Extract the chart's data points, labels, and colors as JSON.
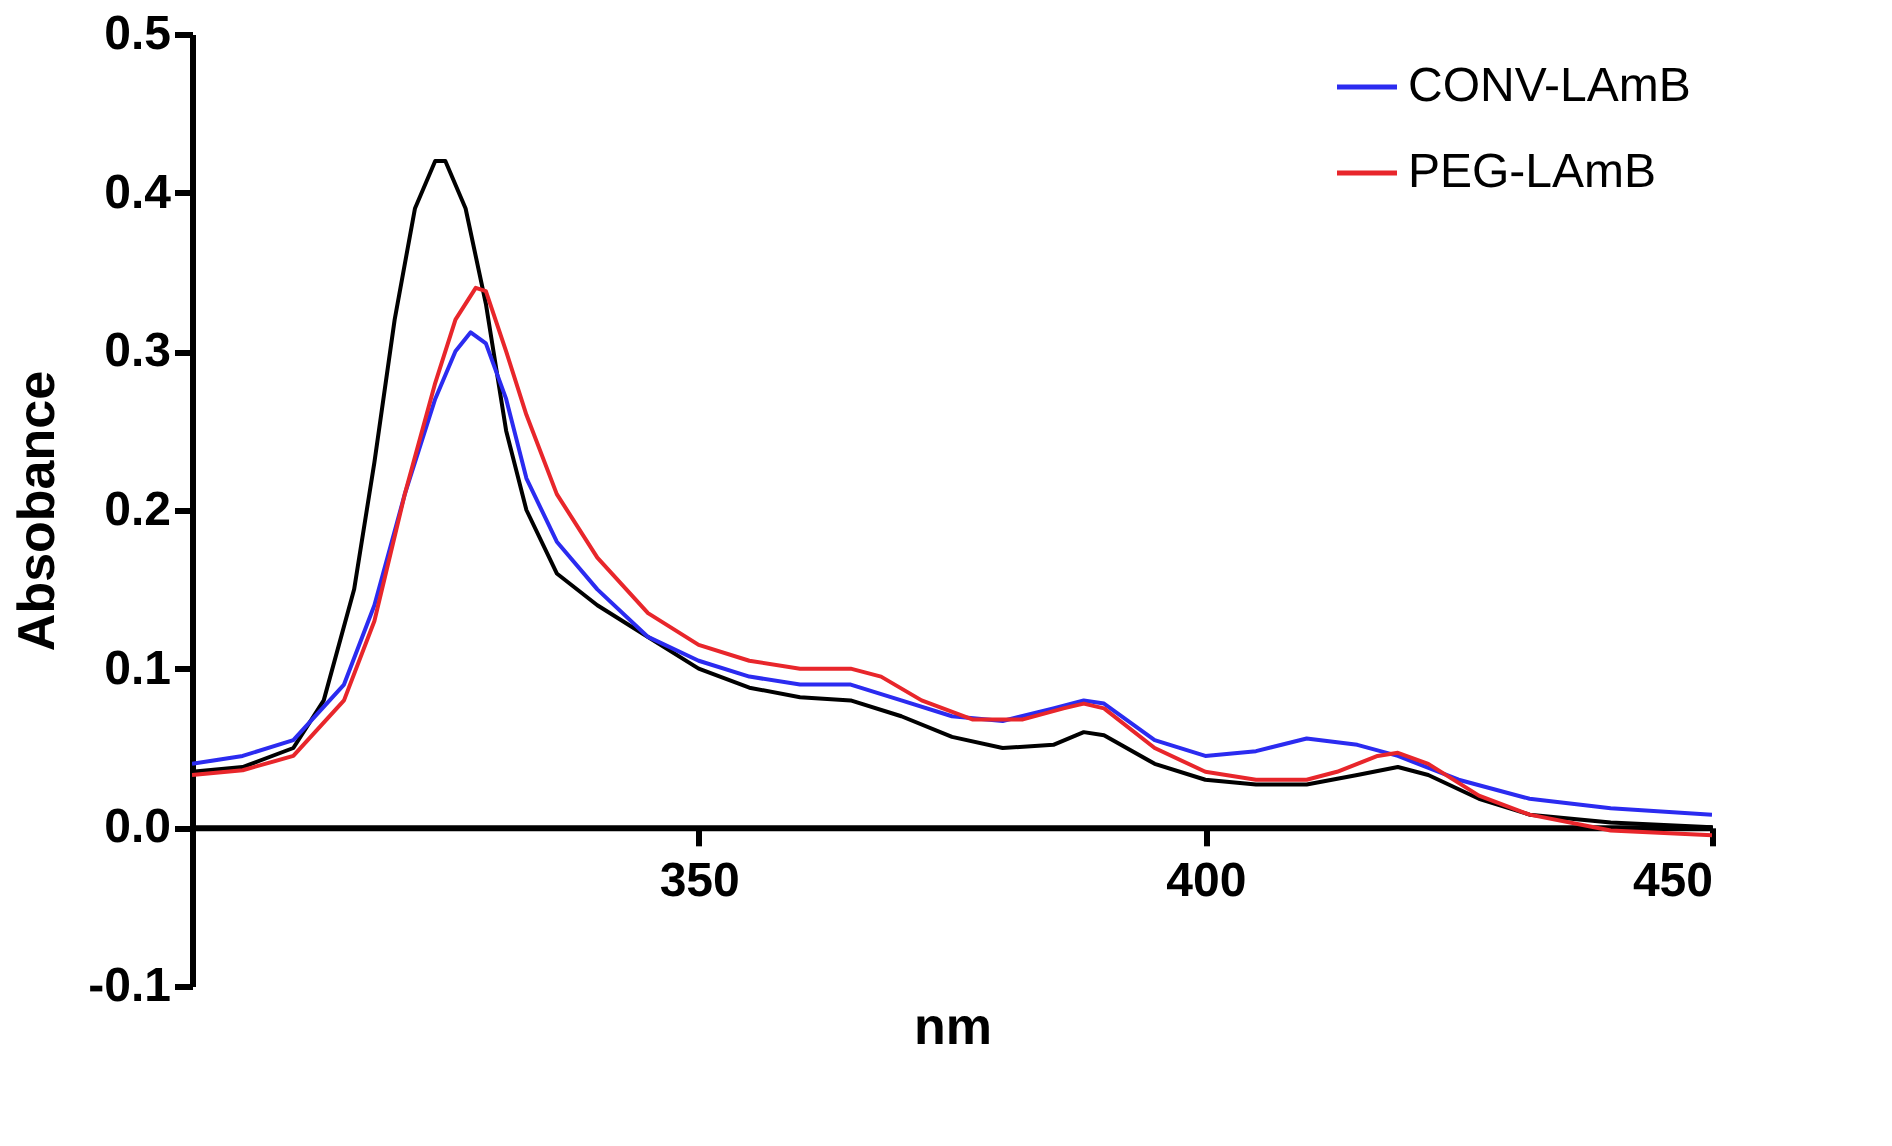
{
  "chart_data": {
    "type": "line",
    "xlabel": "nm",
    "ylabel": "Absobance",
    "xlim": [
      300,
      450
    ],
    "xticks": [
      350,
      400,
      450
    ],
    "ylim": [
      -0.1,
      0.5
    ],
    "yticks": [
      -0.1,
      {
        "value": 0,
        "label": "0.0"
      },
      0.1,
      0.2,
      0.3,
      0.4,
      0.5
    ],
    "grid": false,
    "legend": "top right",
    "marker": "none",
    "line_style": "solid",
    "series": [
      {
        "color": "#000000",
        "x": [
          300,
          305,
          310,
          313,
          316,
          318,
          320,
          322,
          324,
          325,
          327,
          329,
          331,
          333,
          336,
          340,
          345,
          350,
          355,
          360,
          365,
          370,
          375,
          380,
          385,
          388,
          390,
          395,
          400,
          405,
          410,
          415,
          419,
          422,
          427,
          432,
          440,
          450
        ],
        "values": [
          0.035,
          0.038,
          0.05,
          0.08,
          0.15,
          0.23,
          0.32,
          0.39,
          0.42,
          0.42,
          0.39,
          0.33,
          0.25,
          0.2,
          0.16,
          0.14,
          0.12,
          0.1,
          0.088,
          0.082,
          0.08,
          0.07,
          0.057,
          0.05,
          0.052,
          0.06,
          0.058,
          0.04,
          0.03,
          0.027,
          0.027,
          0.033,
          0.038,
          0.033,
          0.018,
          0.008,
          0.003,
          0.0
        ]
      },
      {
        "name": "CONV-LAmB",
        "color": "#2b2bf0",
        "x": [
          300,
          305,
          310,
          315,
          318,
          321,
          324,
          326,
          327.5,
          329,
          331,
          333,
          336,
          340,
          345,
          350,
          355,
          360,
          365,
          370,
          375,
          380,
          385,
          388,
          390,
          395,
          400,
          405,
          410,
          415,
          419,
          425,
          432,
          440,
          450
        ],
        "values": [
          0.04,
          0.045,
          0.055,
          0.09,
          0.14,
          0.21,
          0.27,
          0.3,
          0.312,
          0.305,
          0.27,
          0.22,
          0.18,
          0.15,
          0.12,
          0.105,
          0.095,
          0.09,
          0.09,
          0.08,
          0.07,
          0.067,
          0.075,
          0.08,
          0.078,
          0.055,
          0.045,
          0.048,
          0.056,
          0.052,
          0.045,
          0.03,
          0.018,
          0.012,
          0.008
        ]
      },
      {
        "name": "PEG-LAmB",
        "color": "#e8262b",
        "x": [
          300,
          305,
          310,
          315,
          318,
          321,
          324,
          326,
          328,
          329,
          331,
          333,
          336,
          340,
          345,
          350,
          355,
          360,
          365,
          368,
          372,
          377,
          382,
          386,
          388,
          390,
          395,
          400,
          405,
          410,
          413,
          417,
          419,
          422,
          427,
          432,
          440,
          450
        ],
        "values": [
          0.033,
          0.036,
          0.045,
          0.08,
          0.13,
          0.21,
          0.28,
          0.32,
          0.34,
          0.338,
          0.3,
          0.26,
          0.21,
          0.17,
          0.135,
          0.115,
          0.105,
          0.1,
          0.1,
          0.095,
          0.08,
          0.068,
          0.068,
          0.075,
          0.078,
          0.075,
          0.05,
          0.035,
          0.03,
          0.03,
          0.035,
          0.045,
          0.047,
          0.04,
          0.02,
          0.008,
          -0.002,
          -0.005
        ]
      }
    ]
  }
}
